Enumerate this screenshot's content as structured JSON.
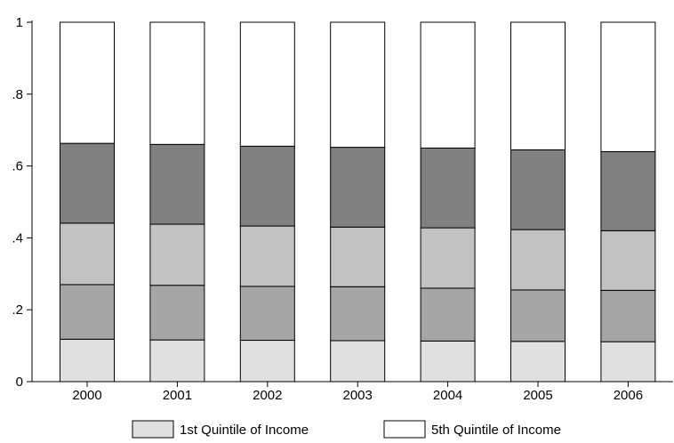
{
  "chart_data": {
    "type": "bar",
    "stacked": true,
    "title": "",
    "xlabel": "",
    "ylabel": "",
    "ylim": [
      0,
      1
    ],
    "y_ticks": [
      {
        "value": 0,
        "label": "0"
      },
      {
        "value": 0.2,
        "label": ".2"
      },
      {
        "value": 0.4,
        "label": ".4"
      },
      {
        "value": 0.6,
        "label": ".6"
      },
      {
        "value": 0.8,
        "label": ".8"
      },
      {
        "value": 1,
        "label": "1"
      }
    ],
    "categories": [
      "2000",
      "2001",
      "2002",
      "2003",
      "2004",
      "2005",
      "2006"
    ],
    "grid": false,
    "legend_placement": "bottom",
    "series": [
      {
        "name": "1st Quintile of Income",
        "color": "#e0e0e0",
        "values": [
          0.118,
          0.116,
          0.115,
          0.114,
          0.113,
          0.112,
          0.111
        ]
      },
      {
        "color": "#a6a6a6",
        "values": [
          0.152,
          0.152,
          0.15,
          0.15,
          0.147,
          0.143,
          0.143
        ]
      },
      {
        "color": "#c2c2c2",
        "values": [
          0.171,
          0.17,
          0.168,
          0.166,
          0.168,
          0.168,
          0.166
        ]
      },
      {
        "color": "#808080",
        "values": [
          0.222,
          0.222,
          0.222,
          0.222,
          0.222,
          0.222,
          0.22
        ]
      },
      {
        "name": "5th Quintile of Income",
        "color": "#ffffff",
        "values": [
          0.337,
          0.34,
          0.345,
          0.348,
          0.35,
          0.355,
          0.36
        ]
      }
    ]
  }
}
